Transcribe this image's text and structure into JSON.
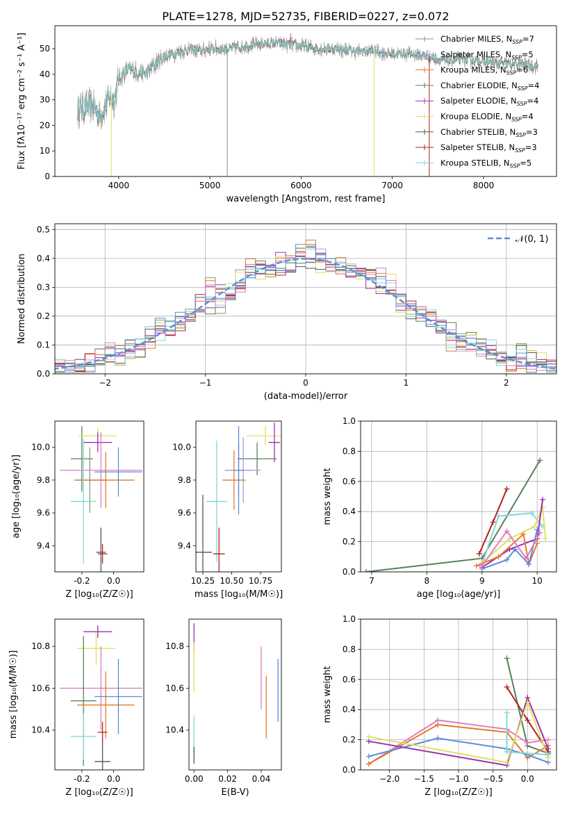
{
  "chart_data": [
    {
      "id": "spectrum",
      "type": "line",
      "title": "PLATE=1278, MJD=52735, FIBERID=0227, z=0.072",
      "xlabel": "wavelength [Angstrom, rest frame]",
      "ylabel": "Flux [fλ10⁻¹⁷ erg cm⁻² s⁻¹ A⁻¹]",
      "xlim": [
        3300,
        8800
      ],
      "ylim": [
        0,
        59
      ],
      "xticks": [
        4000,
        5000,
        6000,
        7000,
        8000
      ],
      "yticks": [
        0,
        10,
        20,
        30,
        40,
        50
      ],
      "grid": false,
      "legend_position": "top-right",
      "legend": [
        {
          "name": "Chabrier MILES, N",
          "sub": "SSP",
          "suffix": "=7",
          "color": "#7b9f7b"
        },
        {
          "name": "Salpeter MILES, N",
          "sub": "SSP",
          "suffix": "=5",
          "color": "#9f9fdf"
        },
        {
          "name": "Kroupa MILES, N",
          "sub": "SSP",
          "suffix": "=6",
          "color": "#e07b28"
        },
        {
          "name": "Chabrier ELODIE, N",
          "sub": "SSP",
          "suffix": "=4",
          "color": "#5a7f5a"
        },
        {
          "name": "Salpeter ELODIE, N",
          "sub": "SSP",
          "suffix": "=4",
          "color": "#9b30b0"
        },
        {
          "name": "Kroupa ELODIE, N",
          "sub": "SSP",
          "suffix": "=4",
          "color": "#e0e060"
        },
        {
          "name": "Chabrier STELIB, N",
          "sub": "SSP",
          "suffix": "=3",
          "color": "#555555"
        },
        {
          "name": "Salpeter STELIB, N",
          "sub": "SSP",
          "suffix": "=3",
          "color": "#b02020"
        },
        {
          "name": "Kroupa STELIB, N",
          "sub": "SSP",
          "suffix": "=5",
          "color": "#80d8d8"
        }
      ],
      "continuum": [
        [
          3550,
          26
        ],
        [
          3700,
          28
        ],
        [
          3800,
          24
        ],
        [
          3900,
          31
        ],
        [
          3950,
          30
        ],
        [
          4000,
          38
        ],
        [
          4100,
          42
        ],
        [
          4200,
          41
        ],
        [
          4300,
          40
        ],
        [
          4400,
          44
        ],
        [
          4500,
          47
        ],
        [
          4600,
          48
        ],
        [
          4700,
          49
        ],
        [
          4800,
          50
        ],
        [
          4900,
          49
        ],
        [
          5000,
          50
        ],
        [
          5200,
          50
        ],
        [
          5400,
          51
        ],
        [
          5600,
          52
        ],
        [
          5800,
          52
        ],
        [
          6000,
          51
        ],
        [
          6200,
          50
        ],
        [
          6400,
          50
        ],
        [
          6600,
          49
        ],
        [
          6800,
          49
        ],
        [
          7000,
          48
        ],
        [
          7200,
          48
        ],
        [
          7400,
          47
        ],
        [
          7600,
          45
        ],
        [
          7800,
          46
        ],
        [
          8000,
          45
        ],
        [
          8200,
          44
        ],
        [
          8400,
          44
        ],
        [
          8600,
          43
        ]
      ],
      "spikes": [
        [
          3920,
          0
        ],
        [
          5190,
          0
        ],
        [
          5885,
          56
        ],
        [
          6800,
          0
        ],
        [
          7405,
          0
        ]
      ]
    },
    {
      "id": "residuals",
      "type": "area",
      "xlabel": "(data-model)/error",
      "ylabel": "Normed distribution",
      "xlim": [
        -2.5,
        2.5
      ],
      "ylim": [
        0,
        0.52
      ],
      "xticks": [
        -2,
        -1,
        0,
        1,
        2
      ],
      "yticks": [
        0.0,
        0.1,
        0.2,
        0.3,
        0.4,
        0.5
      ],
      "grid": true,
      "legend_position": "top-right",
      "legend_label": "𝒩(0, 1)",
      "normal_color": "#5b8dd9",
      "bin_width": 0.1,
      "hist_colors": [
        "#7b9f7b",
        "#9f9fdf",
        "#e07b28",
        "#5a7f5a",
        "#9b30b0",
        "#e0e060",
        "#555555",
        "#b02020",
        "#80d8d8",
        "#e07bc0",
        "#5b8dd9"
      ],
      "bumps": [
        0.02,
        -0.03,
        0.04,
        -0.05,
        0.06,
        -0.02,
        0.08,
        -0.06,
        0.05,
        -0.03,
        0.07,
        -0.04,
        0.03,
        0.06,
        -0.05,
        0.02,
        -0.07,
        0.04,
        -0.02,
        0.05,
        -0.06,
        0.03
      ]
    },
    {
      "id": "age_vs_Z",
      "type": "scatter",
      "xlabel": "Z [log₁₀(Z/Z☉)]",
      "ylabel": "age  [log₁₀(age/yr)]",
      "xlim": [
        -0.37,
        0.19
      ],
      "ylim": [
        9.24,
        10.16
      ],
      "xticks": [
        -0.2,
        0.0
      ],
      "yticks": [
        9.4,
        9.6,
        9.8,
        10.0
      ],
      "points": [
        {
          "x": -0.2,
          "y": 9.93,
          "xerr": 0.07,
          "yerr": 0.2,
          "color": "#5a7f5a"
        },
        {
          "x": -0.1,
          "y": 10.07,
          "xerr": 0.12,
          "yerr": 0.05,
          "color": "#e0e060"
        },
        {
          "x": -0.1,
          "y": 10.03,
          "xerr": 0.09,
          "yerr": 0.06,
          "color": "#9b30b0"
        },
        {
          "x": -0.08,
          "y": 9.86,
          "xerr": 0.26,
          "yerr": 0.23,
          "color": "#e07bc0"
        },
        {
          "x": -0.15,
          "y": 9.8,
          "xerr": 0.1,
          "yerr": 0.2,
          "color": "#7b9f7b"
        },
        {
          "x": -0.05,
          "y": 9.8,
          "xerr": 0.18,
          "yerr": 0.17,
          "color": "#e07b28"
        },
        {
          "x": 0.03,
          "y": 9.85,
          "xerr": 0.15,
          "yerr": 0.15,
          "color": "#5b8dd9"
        },
        {
          "x": -0.19,
          "y": 9.67,
          "xerr": 0.08,
          "yerr": 0.38,
          "color": "#80d8d8"
        },
        {
          "x": -0.08,
          "y": 9.36,
          "xerr": 0.03,
          "yerr": 0.15,
          "color": "#555555"
        },
        {
          "x": -0.07,
          "y": 9.35,
          "xerr": 0.03,
          "yerr": 0.06,
          "color": "#b02020"
        }
      ]
    },
    {
      "id": "age_vs_mass",
      "type": "scatter",
      "xlabel": "mass [log₁₀(M/M☉)]",
      "ylabel": "",
      "xlim": [
        10.19,
        10.93
      ],
      "ylim": [
        9.24,
        10.16
      ],
      "xticks": [
        10.25,
        10.5,
        10.75
      ],
      "yticks": [
        9.4,
        9.6,
        9.8,
        10.0
      ],
      "points": [
        {
          "x": 10.79,
          "y": 10.07,
          "xerr": 0.16,
          "yerr": 0.06,
          "color": "#e0e060"
        },
        {
          "x": 10.87,
          "y": 10.03,
          "xerr": 0.05,
          "yerr": 0.12,
          "color": "#9b30b0"
        },
        {
          "x": 10.72,
          "y": 9.93,
          "xerr": 0.17,
          "yerr": 0.1,
          "color": "#5a7f5a"
        },
        {
          "x": 10.56,
          "y": 9.86,
          "xerr": 0.12,
          "yerr": 0.16,
          "color": "#e07bc0"
        },
        {
          "x": 10.6,
          "y": 9.86,
          "xerr": 0.15,
          "yerr": 0.2,
          "color": "#9f9fdf"
        },
        {
          "x": 10.52,
          "y": 9.8,
          "xerr": 0.1,
          "yerr": 0.18,
          "color": "#e07b28"
        },
        {
          "x": 10.56,
          "y": 9.86,
          "xerr": 0.04,
          "yerr": 0.27,
          "color": "#5b8dd9"
        },
        {
          "x": 10.37,
          "y": 9.67,
          "xerr": 0.09,
          "yerr": 0.37,
          "color": "#80d8d8"
        },
        {
          "x": 10.25,
          "y": 9.36,
          "xerr": 0.08,
          "yerr": 0.35,
          "color": "#555555"
        },
        {
          "x": 10.39,
          "y": 9.35,
          "xerr": 0.05,
          "yerr": 0.16,
          "color": "#b02020"
        }
      ]
    },
    {
      "id": "weight_vs_age",
      "type": "line",
      "xlabel": "age  [log₁₀(age/yr)]",
      "ylabel": "mass weight",
      "xlim": [
        6.8,
        10.35
      ],
      "ylim": [
        0,
        1
      ],
      "xticks": [
        7,
        8,
        9,
        10
      ],
      "yticks": [
        0.0,
        0.2,
        0.4,
        0.6,
        0.8,
        1.0
      ],
      "grid": true,
      "series": [
        {
          "color": "#5a7f5a",
          "x": [
            6.9,
            9.0,
            10.05
          ],
          "y": [
            0.0,
            0.09,
            0.74
          ]
        },
        {
          "color": "#b02020",
          "x": [
            8.95,
            9.2,
            9.45
          ],
          "y": [
            0.12,
            0.33,
            0.55
          ]
        },
        {
          "color": "#80d8d8",
          "x": [
            9.0,
            9.3,
            9.9,
            10.1
          ],
          "y": [
            0.05,
            0.37,
            0.39,
            0.3
          ]
        },
        {
          "color": "#e0e060",
          "x": [
            9.0,
            9.5,
            9.95,
            10.1,
            10.15
          ],
          "y": [
            0.06,
            0.22,
            0.3,
            0.43,
            0.22
          ]
        },
        {
          "color": "#9b30b0",
          "x": [
            9.0,
            9.5,
            10.0,
            10.1
          ],
          "y": [
            0.03,
            0.15,
            0.22,
            0.48
          ]
        },
        {
          "color": "#e07b28",
          "x": [
            8.9,
            9.3,
            9.75,
            9.85,
            10.0
          ],
          "y": [
            0.04,
            0.1,
            0.25,
            0.05,
            0.19
          ]
        },
        {
          "color": "#5b8dd9",
          "x": [
            9.0,
            9.45,
            9.6,
            9.85,
            10.0
          ],
          "y": [
            0.02,
            0.08,
            0.15,
            0.05,
            0.28
          ]
        },
        {
          "color": "#e07bc0",
          "x": [
            9.0,
            9.45,
            9.8,
            10.05
          ],
          "y": [
            0.04,
            0.27,
            0.09,
            0.26
          ]
        }
      ]
    },
    {
      "id": "mass_vs_Z",
      "type": "scatter",
      "xlabel": "Z [log₁₀(Z/Z☉)]",
      "ylabel": "mass [log₁₀(M/M☉)]",
      "xlim": [
        -0.37,
        0.19
      ],
      "ylim": [
        10.21,
        10.93
      ],
      "xticks": [
        -0.2,
        0.0
      ],
      "yticks": [
        10.4,
        10.6,
        10.8
      ],
      "points": [
        {
          "x": -0.1,
          "y": 10.87,
          "xerr": 0.09,
          "yerr": 0.03,
          "color": "#9b30b0"
        },
        {
          "x": -0.11,
          "y": 10.79,
          "xerr": 0.12,
          "yerr": 0.08,
          "color": "#e0e060"
        },
        {
          "x": -0.08,
          "y": 10.6,
          "xerr": 0.26,
          "yerr": 0.2,
          "color": "#e07bc0"
        },
        {
          "x": -0.19,
          "y": 10.54,
          "xerr": 0.08,
          "yerr": 0.31,
          "color": "#5a7f5a"
        },
        {
          "x": -0.05,
          "y": 10.52,
          "xerr": 0.18,
          "yerr": 0.16,
          "color": "#e07b28"
        },
        {
          "x": 0.03,
          "y": 10.56,
          "xerr": 0.15,
          "yerr": 0.18,
          "color": "#5b8dd9"
        },
        {
          "x": -0.19,
          "y": 10.37,
          "xerr": 0.08,
          "yerr": 0.11,
          "color": "#80d8d8"
        },
        {
          "x": -0.07,
          "y": 10.39,
          "xerr": 0.03,
          "yerr": 0.05,
          "color": "#b02020"
        },
        {
          "x": -0.07,
          "y": 10.25,
          "xerr": 0.05,
          "yerr": 0.11,
          "color": "#555555"
        }
      ]
    },
    {
      "id": "mass_vs_ebv",
      "type": "scatter",
      "xlabel": "E(B-V)",
      "ylabel": "",
      "xlim": [
        -0.003,
        0.052
      ],
      "ylim": [
        10.21,
        10.93
      ],
      "xticks": [
        0.0,
        0.02,
        0.04
      ],
      "yticks": [
        10.4,
        10.6,
        10.8
      ],
      "points": [
        {
          "x": 0.0,
          "y": 10.84,
          "xerr": 0,
          "yerr": 0.07,
          "color": "#9b30b0"
        },
        {
          "x": 0.0,
          "y": 10.7,
          "xerr": 0,
          "yerr": 0.12,
          "color": "#e0e060"
        },
        {
          "x": 0.0,
          "y": 10.37,
          "xerr": 0,
          "yerr": 0.1,
          "color": "#80d8d8"
        },
        {
          "x": 0.0,
          "y": 10.28,
          "xerr": 0,
          "yerr": 0.04,
          "color": "#555555"
        },
        {
          "x": 0.04,
          "y": 10.65,
          "xerr": 0,
          "yerr": 0.15,
          "color": "#e07bc0"
        },
        {
          "x": 0.043,
          "y": 10.51,
          "xerr": 0,
          "yerr": 0.15,
          "color": "#e07b28"
        },
        {
          "x": 0.05,
          "y": 10.59,
          "xerr": 0,
          "yerr": 0.15,
          "color": "#5b8dd9"
        }
      ]
    },
    {
      "id": "weight_vs_Z",
      "type": "line",
      "xlabel": "Z [log₁₀(Z/Z☉)]",
      "ylabel": "mass weight",
      "xlim": [
        -2.42,
        0.42
      ],
      "ylim": [
        0,
        1
      ],
      "xticks": [
        -2.0,
        -1.5,
        -1.0,
        -0.5,
        0.0
      ],
      "yticks": [
        0.0,
        0.2,
        0.4,
        0.6,
        0.8,
        1.0
      ],
      "grid": true,
      "series": [
        {
          "color": "#5a7f5a",
          "x": [
            -0.3,
            0.0,
            0.3
          ],
          "y": [
            0.74,
            0.16,
            0.11
          ]
        },
        {
          "color": "#b02020",
          "x": [
            -0.3,
            0.0,
            0.3
          ],
          "y": [
            0.55,
            0.33,
            0.12
          ]
        },
        {
          "color": "#e07bc0",
          "x": [
            -2.3,
            -1.3,
            -0.3,
            0.0,
            0.3
          ],
          "y": [
            0.04,
            0.33,
            0.27,
            0.18,
            0.2
          ]
        },
        {
          "color": "#e07b28",
          "x": [
            -2.3,
            -1.3,
            -0.3,
            0.0,
            0.3
          ],
          "y": [
            0.04,
            0.3,
            0.25,
            0.08,
            0.16
          ]
        },
        {
          "color": "#5b8dd9",
          "x": [
            -2.3,
            -1.3,
            -0.3,
            0.0,
            0.3
          ],
          "y": [
            0.09,
            0.21,
            0.14,
            0.1,
            0.05
          ]
        },
        {
          "color": "#9b30b0",
          "x": [
            -2.3,
            -0.3,
            0.0,
            0.3
          ],
          "y": [
            0.19,
            0.03,
            0.48,
            0.14
          ]
        },
        {
          "color": "#e0e060",
          "x": [
            -2.3,
            -0.3,
            0.0,
            0.3
          ],
          "y": [
            0.22,
            0.05,
            0.45,
            0.08
          ]
        },
        {
          "color": "#80d8d8",
          "x": [
            -0.3,
            -0.3,
            0.0,
            0.3
          ],
          "y": [
            0.38,
            0.12,
            0.11,
            0.1
          ]
        }
      ]
    }
  ]
}
